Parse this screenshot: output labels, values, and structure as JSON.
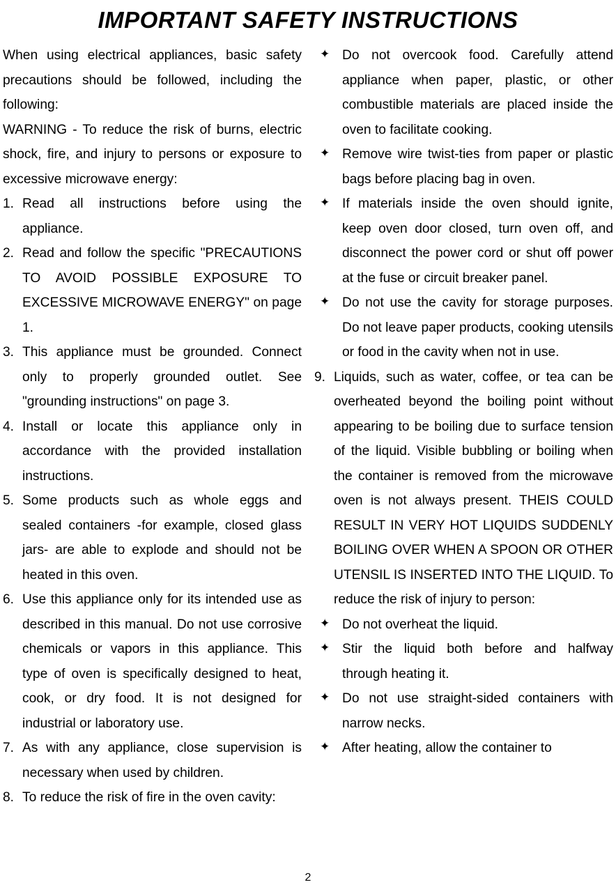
{
  "title": "IMPORTANT SAFETY INSTRUCTIONS",
  "page_number": "2",
  "left": {
    "intro": "When using electrical appliances, basic safety precautions should be followed, including the following:",
    "warning": "WARNING - To reduce the risk of burns, electric shock, fire, and injury to persons or exposure to excessive microwave energy:",
    "items": [
      "Read all instructions before using the appliance.",
      "Read and follow the specific \"PRECAUTIONS TO AVOID POSSIBLE EXPOSURE TO EXCESSIVE MICROWAVE ENERGY\" on page 1.",
      "This appliance must be grounded. Connect only to properly grounded outlet. See \"grounding instructions\" on page 3.",
      "Install or locate this appliance only in accordance with the provided installation instructions.",
      "Some products such as whole eggs and sealed containers -for example, closed glass jars- are able to explode and should not be heated in this oven.",
      "Use this appliance only for its intended use as described in this manual. Do not use corrosive chemicals or vapors in this appliance. This type of oven is specifically designed to heat, cook, or dry food. It is not designed for industrial or laboratory use.",
      "As with any appliance, close supervision is necessary when used by children.",
      "To reduce the risk of fire in the oven cavity:"
    ]
  },
  "right": {
    "bullets1": [
      "Do not overcook food. Carefully attend appliance when paper, plastic, or other combustible materials are placed inside the oven to facilitate cooking.",
      "Remove wire twist-ties from paper or plastic bags before placing bag in oven.",
      "If materials inside the oven should ignite, keep oven door closed, turn oven off, and disconnect the power cord or shut off power at the fuse or circuit breaker panel.",
      "Do not use the cavity for storage purposes. Do not leave paper products, cooking utensils or food in the cavity when not in use."
    ],
    "item9": "Liquids, such as water, coffee, or tea can be overheated beyond the boiling point without appearing to be boiling due to surface tension of the liquid. Visible bubbling or boiling when the container is removed from the microwave oven is not always present. THEIS COULD RESULT IN VERY HOT LIQUIDS SUDDENLY BOILING OVER WHEN A SPOON OR OTHER UTENSIL IS INSERTED INTO THE LIQUID. To reduce the risk of injury to person:",
    "bullets2": [
      "Do not overheat the liquid.",
      "Stir the liquid both before and halfway through heating it.",
      "Do not use straight-sided containers with narrow necks.",
      "After heating, allow the container to"
    ]
  }
}
